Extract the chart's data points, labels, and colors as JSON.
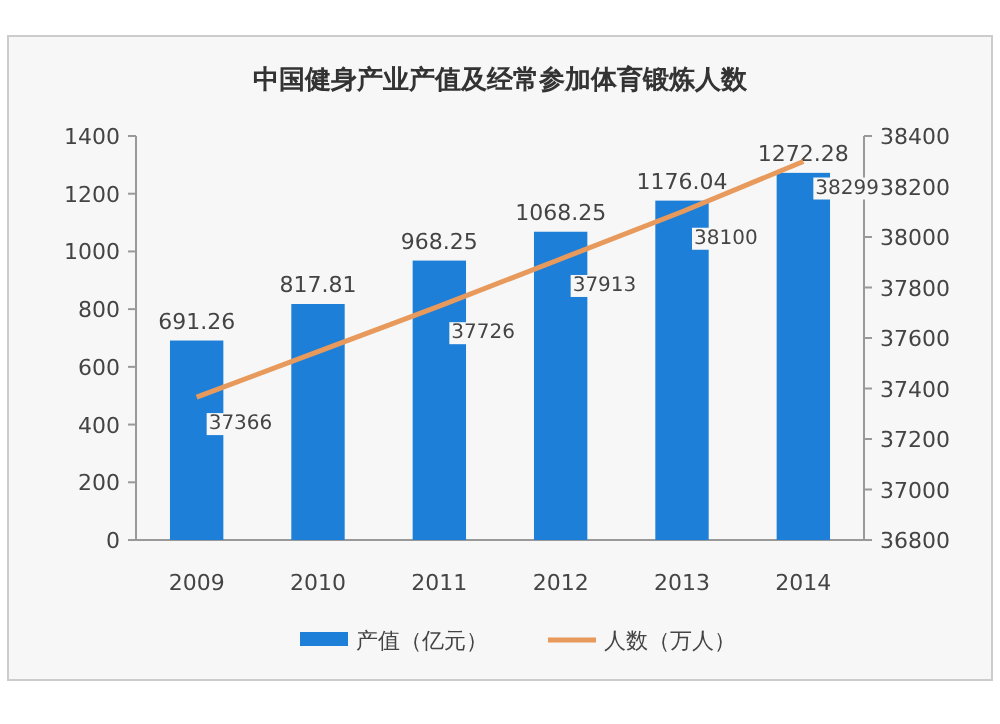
{
  "chart_data": {
    "type": "bar",
    "title": "中国健身产业产值及经常参加体育锻炼人数",
    "categories": [
      "2009",
      "2010",
      "2011",
      "2012",
      "2013",
      "2014"
    ],
    "series": [
      {
        "name": "产值（亿元）",
        "color": "#1e7fd8",
        "values": [
          691.26,
          817.81,
          968.25,
          1068.25,
          1176.04,
          1272.28
        ],
        "value_labels": [
          "691.26",
          "817.81",
          "968.25",
          "1068.25",
          "1176.04",
          "1272.28"
        ]
      },
      {
        "name": "人数（万人）",
        "type": "line",
        "axis": "y2",
        "color": "#e89a5c",
        "values": [
          37366,
          37546,
          37726,
          37913,
          38100,
          38299
        ],
        "value_labels": [
          "37366",
          null,
          "37726",
          "37913",
          "38100",
          "38299"
        ]
      }
    ],
    "ylim": [
      0,
      1400
    ],
    "yticks": [
      0,
      200,
      400,
      600,
      800,
      1000,
      1200,
      1400
    ],
    "y2lim": [
      36800,
      38400
    ],
    "y2ticks": [
      36800,
      37000,
      37200,
      37400,
      37600,
      37800,
      38000,
      38200,
      38400
    ],
    "legend": "bottom",
    "grid": false
  }
}
